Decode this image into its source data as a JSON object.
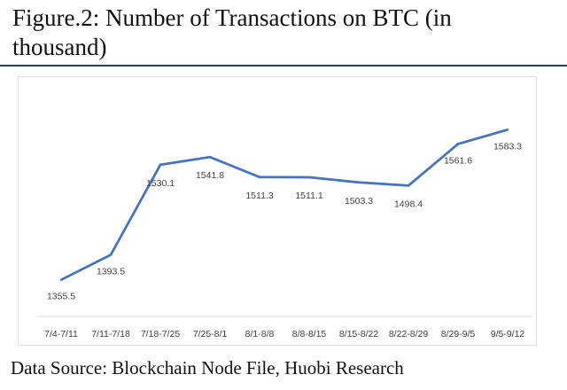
{
  "page": {
    "title": "Figure.2: Number of Transactions on BTC (in thousand)",
    "source": "Data Source: Blockchain Node File, Huobi Research"
  },
  "chart_data": {
    "type": "line",
    "title": "",
    "xlabel": "",
    "ylabel": "",
    "categories": [
      "7/4-7/11",
      "7/11-7/18",
      "7/18-7/25",
      "7/25-8/1",
      "8/1-8/8",
      "8/8-8/15",
      "8/15-8/22",
      "8/22-8/29",
      "8/29-9/5",
      "9/5-9/12"
    ],
    "series": [
      {
        "name": "",
        "values": [
          1355.5,
          1393.5,
          1530.1,
          1541.8,
          1511.3,
          1511.1,
          1503.3,
          1498.4,
          1561.6,
          1583.3
        ],
        "data_labels": [
          "1355.5",
          "1393.5",
          "1530.1",
          "1541.8",
          "1511.3",
          "1511.1",
          "1503.3",
          "1498.4",
          "1561.6",
          "1583.3"
        ],
        "color": "#4472c4"
      }
    ],
    "ylim": [
      1300,
      1620
    ],
    "grid": false,
    "axis_color": "#d9d9d9"
  }
}
